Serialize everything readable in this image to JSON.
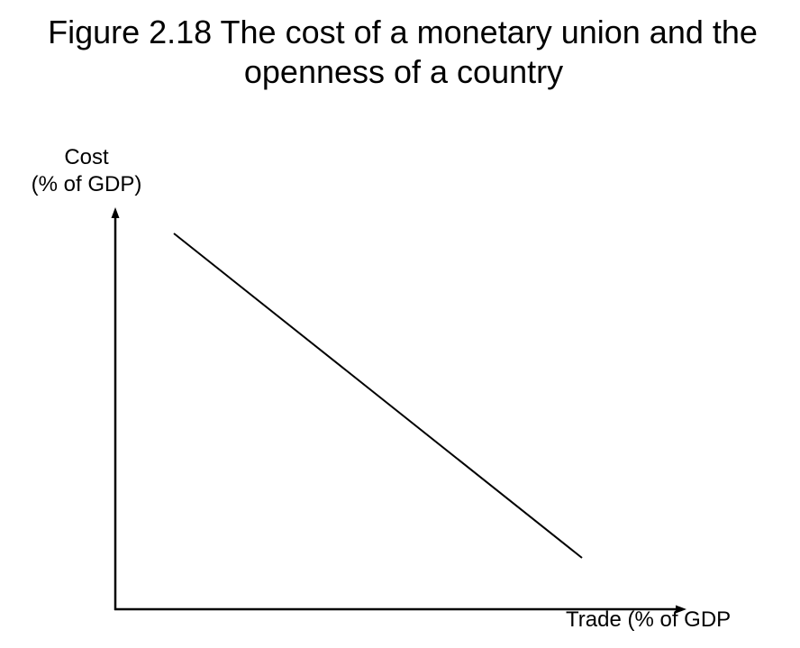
{
  "title": {
    "line1": "Figure 2.18 The cost of a monetary union and the",
    "line2": "openness of a country"
  },
  "y_axis": {
    "label_line1": "Cost",
    "label_line2": "(% of GDP)"
  },
  "x_axis": {
    "label": "Trade (% of GDP"
  },
  "curve": {
    "description_type": "downward-sloping straight line"
  },
  "colors": {
    "background": "#ffffff",
    "ink": "#000000"
  }
}
